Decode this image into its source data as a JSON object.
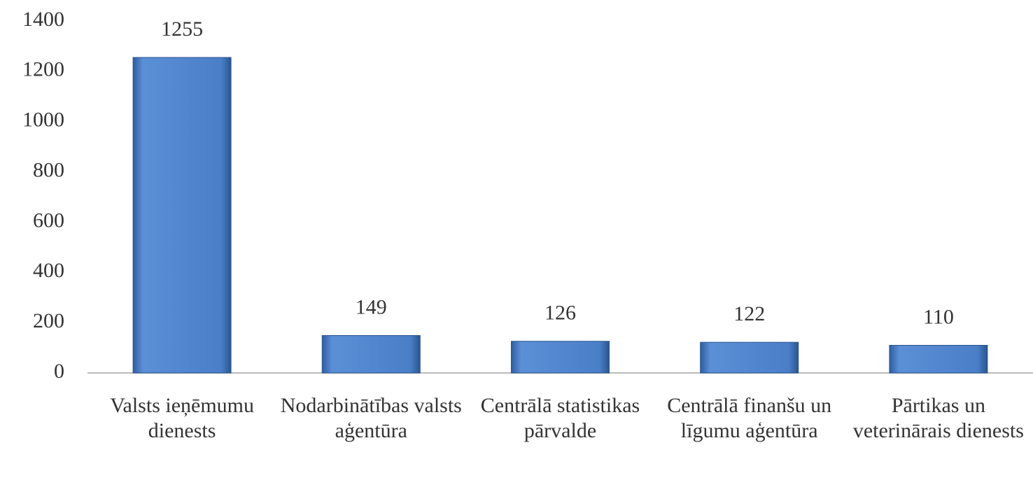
{
  "chart_data": {
    "type": "bar",
    "categories": [
      "Valsts ieņēmumu dienests",
      "Nodarbinātības valsts aģentūra",
      "Centrālā statistikas pārvalde",
      "Centrālā finanšu un līgumu aģentūra",
      "Pārtikas un veterinārais dienests"
    ],
    "values": [
      1255,
      149,
      126,
      122,
      110
    ],
    "color": "#4a7fc8",
    "ylim": [
      0,
      1400
    ],
    "yticks": [
      0,
      200,
      400,
      600,
      800,
      1000,
      1200,
      1400
    ],
    "grid": false
  }
}
